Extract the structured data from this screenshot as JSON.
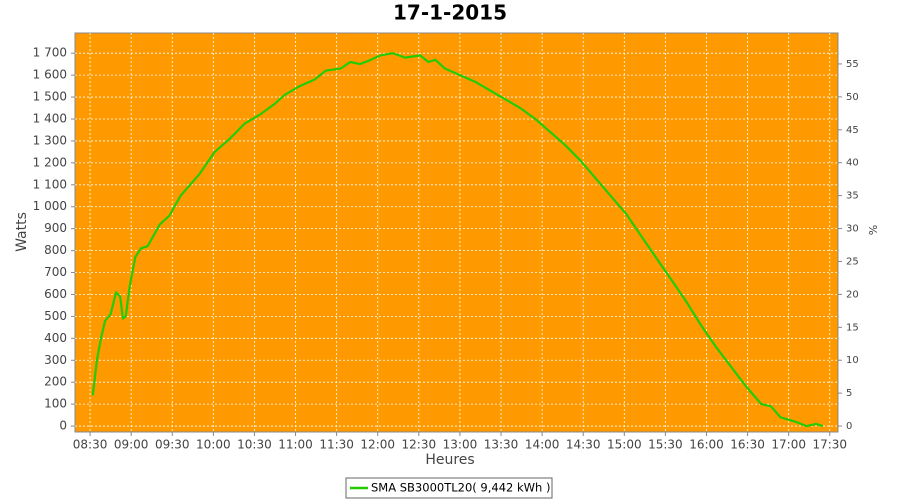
{
  "chart_data": {
    "type": "line",
    "title": "17-1-2015",
    "xlabel": "Heures",
    "ylabel": "Watts",
    "y2label": "%",
    "x": [
      "08:32",
      "08:35",
      "08:38",
      "08:41",
      "08:45",
      "08:49",
      "08:52",
      "08:54",
      "08:56",
      "08:59",
      "09:03",
      "09:07",
      "09:12",
      "09:21",
      "09:28",
      "09:36",
      "09:43",
      "09:50",
      "10:01",
      "10:12",
      "10:23",
      "10:34",
      "10:45",
      "10:52",
      "11:03",
      "11:14",
      "11:22",
      "11:33",
      "11:40",
      "11:47",
      "11:55",
      "12:02",
      "12:11",
      "12:20",
      "12:31",
      "12:37",
      "12:42",
      "12:49",
      "13:00",
      "13:11",
      "13:22",
      "13:33",
      "13:44",
      "13:55",
      "14:06",
      "14:17",
      "14:28",
      "14:39",
      "14:50",
      "15:01",
      "15:12",
      "15:23",
      "15:34",
      "15:45",
      "15:56",
      "16:07",
      "16:18",
      "16:29",
      "16:40",
      "16:47",
      "16:54",
      "17:05",
      "17:13",
      "17:20",
      "17:25"
    ],
    "series": [
      {
        "name": "SMA SB3000TL20( 9,442 kWh )",
        "color": "#22cc00",
        "values": [
          140,
          300,
          400,
          480,
          510,
          610,
          590,
          490,
          500,
          640,
          770,
          810,
          820,
          920,
          960,
          1050,
          1100,
          1150,
          1250,
          1310,
          1380,
          1420,
          1470,
          1510,
          1550,
          1580,
          1620,
          1630,
          1660,
          1650,
          1670,
          1690,
          1700,
          1680,
          1690,
          1660,
          1670,
          1630,
          1600,
          1570,
          1530,
          1490,
          1450,
          1400,
          1340,
          1280,
          1210,
          1130,
          1050,
          970,
          870,
          770,
          670,
          570,
          460,
          360,
          270,
          180,
          100,
          90,
          40,
          20,
          0,
          10,
          0
        ]
      }
    ],
    "xlim": [
      "08:19",
      "17:36"
    ],
    "xticks": [
      "08:30",
      "09:00",
      "09:30",
      "10:00",
      "10:30",
      "11:00",
      "11:30",
      "12:00",
      "12:30",
      "13:00",
      "13:30",
      "14:00",
      "14:30",
      "15:00",
      "15:30",
      "16:00",
      "16:30",
      "17:00",
      "17:30"
    ],
    "ylim": [
      -27,
      1792
    ],
    "yticks": [
      0,
      100,
      200,
      300,
      400,
      500,
      600,
      700,
      800,
      900,
      {
        "value": 1000,
        "label": "1 000"
      },
      {
        "value": 1100,
        "label": "1 100"
      },
      {
        "value": 1200,
        "label": "1 200"
      },
      {
        "value": 1300,
        "label": "1 300"
      },
      {
        "value": 1400,
        "label": "1 400"
      },
      {
        "value": 1500,
        "label": "1 500"
      },
      {
        "value": 1600,
        "label": "1 600"
      },
      {
        "value": 1700,
        "label": "1 700"
      }
    ],
    "y2lim": [
      -0.9,
      59.7
    ],
    "y2ticks": [
      0,
      5,
      10,
      15,
      20,
      25,
      30,
      35,
      40,
      45,
      50,
      55
    ],
    "grid": true,
    "plot_background": "#ff9900"
  }
}
